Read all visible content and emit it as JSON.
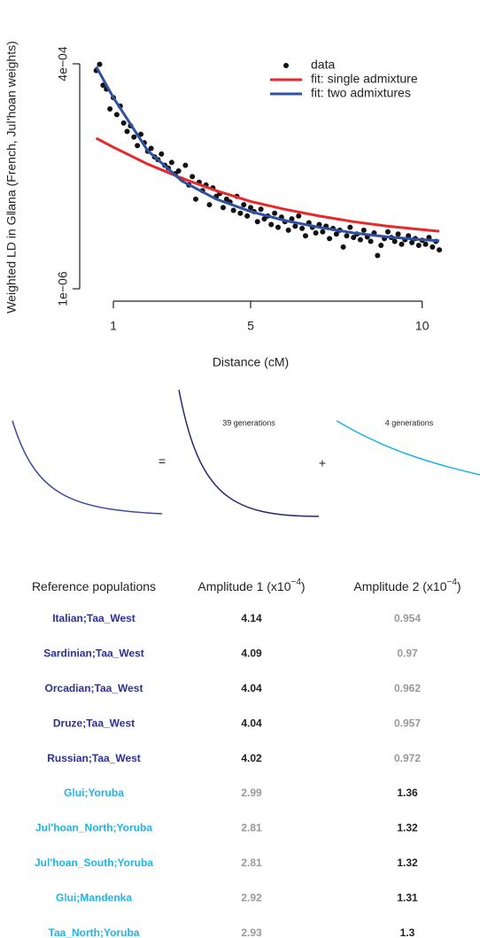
{
  "chart_data": {
    "type": "scatter",
    "y_label": "Weighted LD in Gǁana (French, Juǀ'hoan weights)",
    "x_label": "Distance (cM)",
    "xlim": [
      0.3,
      10.8
    ],
    "ylim": [
      -2e-05,
      0.00042
    ],
    "xticks": [
      1,
      5,
      10
    ],
    "yticks": [
      {
        "value": 0.0004,
        "label": "4e−04"
      },
      {
        "value": 1e-06,
        "label": "1e−06"
      }
    ],
    "legend": "top-right",
    "series": [
      {
        "name": "data",
        "mode": "markers",
        "color": "#111111",
        "x": [
          0.5,
          0.6,
          0.7,
          0.8,
          0.9,
          1.0,
          1.1,
          1.2,
          1.3,
          1.4,
          1.5,
          1.6,
          1.7,
          1.8,
          1.9,
          2.0,
          2.1,
          2.2,
          2.3,
          2.4,
          2.5,
          2.6,
          2.7,
          2.8,
          2.9,
          3.0,
          3.1,
          3.2,
          3.3,
          3.4,
          3.5,
          3.6,
          3.7,
          3.8,
          3.9,
          4.0,
          4.1,
          4.2,
          4.3,
          4.4,
          4.5,
          4.6,
          4.7,
          4.8,
          4.9,
          5.0,
          5.1,
          5.2,
          5.3,
          5.4,
          5.5,
          5.6,
          5.7,
          5.8,
          5.9,
          6.0,
          6.1,
          6.2,
          6.3,
          6.4,
          6.5,
          6.6,
          6.7,
          6.8,
          6.9,
          7.0,
          7.1,
          7.2,
          7.3,
          7.4,
          7.5,
          7.6,
          7.7,
          7.8,
          7.9,
          8.0,
          8.1,
          8.2,
          8.3,
          8.4,
          8.5,
          8.6,
          8.7,
          8.8,
          8.9,
          9.0,
          9.1,
          9.2,
          9.3,
          9.4,
          9.5,
          9.6,
          9.7,
          9.8,
          9.9,
          10.0,
          10.1,
          10.2,
          10.3,
          10.4,
          10.5
        ],
        "values": [
          0.000388,
          0.000399,
          0.000362,
          0.000355,
          0.00032,
          0.00034,
          0.00031,
          0.000325,
          0.000295,
          0.00028,
          0.00029,
          0.00027,
          0.000255,
          0.000275,
          0.00026,
          0.000245,
          0.00025,
          0.000235,
          0.00023,
          0.00024,
          0.00022,
          0.000215,
          0.000225,
          0.000205,
          0.00021,
          0.000195,
          0.00022,
          0.000185,
          0.0002,
          0.00016,
          0.00019,
          0.000175,
          0.000185,
          0.00015,
          0.00018,
          0.000165,
          0.00017,
          0.000145,
          0.00016,
          0.000155,
          0.00014,
          0.000165,
          0.000135,
          0.00015,
          0.00013,
          0.000145,
          0.000138,
          0.00012,
          0.000142,
          0.000125,
          0.00013,
          0.000115,
          0.000135,
          0.00011,
          0.000128,
          0.00012,
          0.000105,
          0.000125,
          0.000112,
          0.00013,
          0.000108,
          9.5e-05,
          0.000118,
          0.00011,
          0.0001,
          0.000115,
          0.000102,
          0.000112,
          9e-05,
          0.000108,
          9.8e-05,
          0.000105,
          7.5e-05,
          9.5e-05,
          0.00011,
          9.2e-05,
          9.8e-05,
          8.8e-05,
          0.000105,
          9.3e-05,
          8.5e-05,
          0.0001,
          6e-05,
          7.8e-05,
          9e-05,
          0.000102,
          9.2e-05,
          8.5e-05,
          9.8e-05,
          8e-05,
          8.8e-05,
          9.5e-05,
          8.3e-05,
          9e-05,
          7.8e-05,
          8.7e-05,
          8e-05,
          9.2e-05,
          7.5e-05,
          8.5e-05,
          7e-05
        ]
      },
      {
        "name": "fit: single admixture",
        "mode": "lines",
        "color": "#e8282b",
        "x": [
          0.5,
          1,
          2,
          3,
          4,
          5,
          6,
          7,
          8,
          9,
          10,
          10.5
        ],
        "values": [
          0.000268,
          0.000252,
          0.000222,
          0.000197,
          0.000175,
          0.000156,
          0.000142,
          0.00013,
          0.00012,
          0.000112,
          0.000106,
          0.000103
        ]
      },
      {
        "name": "fit: two admixtures",
        "mode": "lines",
        "color": "#3050a0",
        "x": [
          0.5,
          1,
          2,
          3,
          4,
          5,
          6,
          7,
          8,
          9,
          10,
          10.5
        ],
        "values": [
          0.000395,
          0.00034,
          0.000246,
          0.000192,
          0.00016,
          0.000138,
          0.000122,
          0.00011,
          0.0001,
          9.3e-05,
          8.8e-05,
          8.6e-05
        ]
      }
    ]
  },
  "diagram": {
    "equals": "=",
    "plus": "+",
    "component_1": "39 generations",
    "component_2": "4 generations"
  },
  "table": {
    "headers": [
      {
        "text": "Reference populations"
      },
      {
        "text": "Amplitude 1 (x10",
        "exponent": "−4",
        "close": ")"
      },
      {
        "text": "Amplitude 2 (x10",
        "exponent": "−4",
        "close": ")"
      }
    ],
    "rows": [
      {
        "population": "Italian;Taa_West",
        "amplitude_1": 4.14,
        "amplitude_2": 0.954,
        "color": "#2e3192",
        "primary": 1
      },
      {
        "population": "Sardinian;Taa_West",
        "amplitude_1": 4.09,
        "amplitude_2": 0.97,
        "color": "#2e3192",
        "primary": 1
      },
      {
        "population": "Orcadian;Taa_West",
        "amplitude_1": 4.04,
        "amplitude_2": 0.962,
        "color": "#2e3192",
        "primary": 1
      },
      {
        "population": "Druze;Taa_West",
        "amplitude_1": 4.04,
        "amplitude_2": 0.957,
        "color": "#2e3192",
        "primary": 1
      },
      {
        "population": "Russian;Taa_West",
        "amplitude_1": 4.02,
        "amplitude_2": 0.972,
        "color": "#2e3192",
        "primary": 1
      },
      {
        "population": "Gǀui;Yoruba",
        "amplitude_1": 2.99,
        "amplitude_2": 1.36,
        "color": "#1eb4e8",
        "primary": 2
      },
      {
        "population": "Juǀ'hoan_North;Yoruba",
        "amplitude_1": 2.81,
        "amplitude_2": 1.32,
        "color": "#1eb4e8",
        "primary": 2
      },
      {
        "population": "Juǀ'hoan_South;Yoruba",
        "amplitude_1": 2.81,
        "amplitude_2": 1.32,
        "color": "#1eb4e8",
        "primary": 2
      },
      {
        "population": "Gǀui;Mandenka",
        "amplitude_1": 2.92,
        "amplitude_2": 1.31,
        "color": "#1eb4e8",
        "primary": 2
      },
      {
        "population": "Taa_North;Yoruba",
        "amplitude_1": 2.93,
        "amplitude_2": 1.3,
        "color": "#1eb4e8",
        "primary": 2
      }
    ]
  }
}
